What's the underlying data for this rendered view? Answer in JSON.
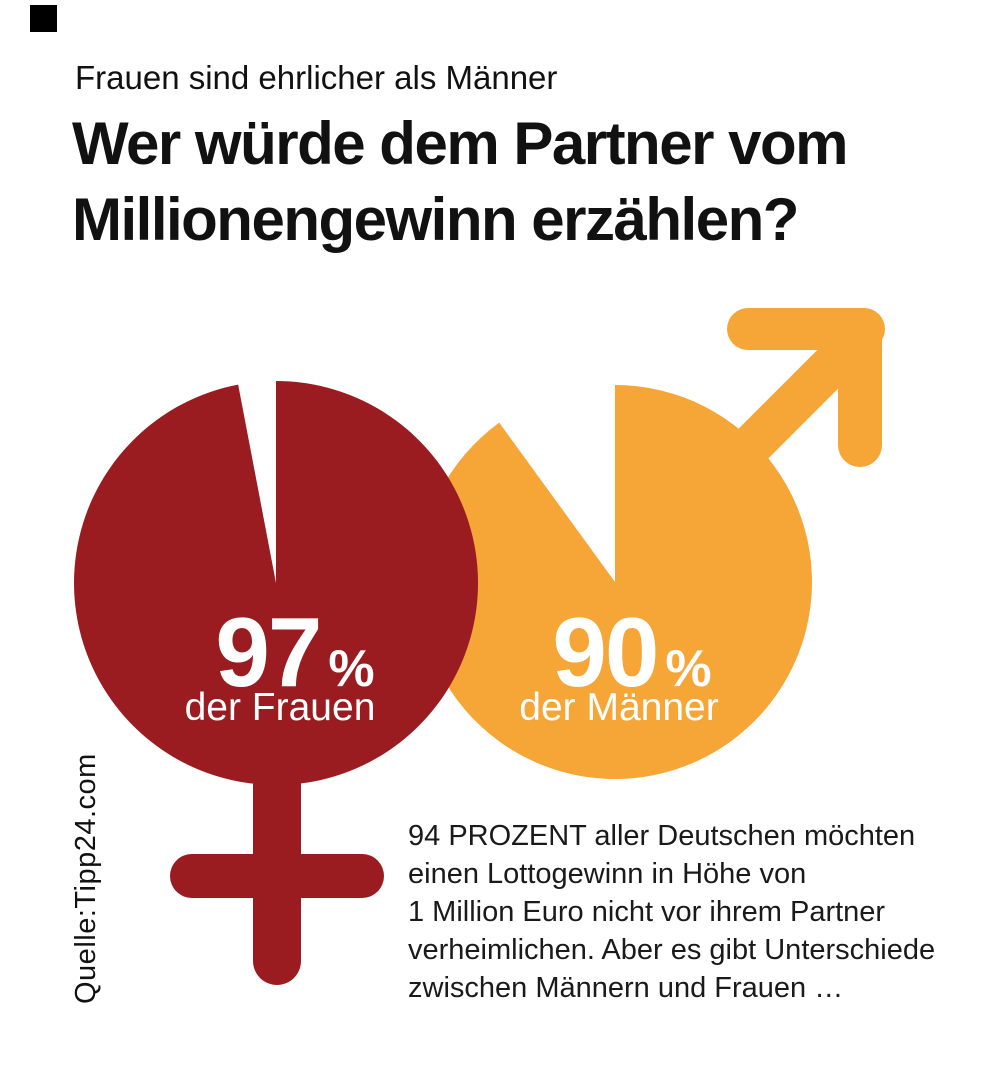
{
  "header": {
    "kicker": "Frauen sind ehrlicher als Männer",
    "title_lines": [
      "Wer würde dem Partner vom",
      "Millionengewinn erzählen?"
    ]
  },
  "source": {
    "text": "Quelle:Tipp24.com"
  },
  "note": {
    "full_text": "94 PROZENT aller Deutschen möchten einen Lottogewinn in Höhe von 1 Million Euro nicht vor ihrem Partner verheimlichen. Aber es gibt Unterschiede zwischen Männern und Frauen …",
    "lines": [
      "94 PROZENT aller Deutschen möchten",
      "einen Lottogewinn in Höhe von",
      "1 Million Euro nicht vor ihrem Partner",
      "verheimlichen. Aber es gibt Unterschiede",
      "zwischen Männern und Frauen …"
    ]
  },
  "chart_data": {
    "type": "pie",
    "title": "Wer würde dem Partner vom Millionengewinn erzählen?",
    "subtitle": "Frauen sind ehrlicher als Männer",
    "source": "Quelle:Tipp24.com",
    "legend_position": "inside",
    "series": [
      {
        "category": "Frauen",
        "value_pct": 97,
        "label_value": "97",
        "unit": "%",
        "sublabel": "der Frauen",
        "color": "#9A1C20",
        "symbol": "female-gender-icon",
        "gap_pct": 3
      },
      {
        "category": "Männer",
        "value_pct": 90,
        "label_value": "90",
        "unit": "%",
        "sublabel": "der Männer",
        "color": "#F5A636",
        "symbol": "male-gender-icon",
        "gap_pct": 10
      }
    ],
    "colors": {
      "female": "#9A1C20",
      "male": "#F5A636",
      "label_text": "#FFFFFF",
      "body_text": "#1A1A1A"
    }
  }
}
